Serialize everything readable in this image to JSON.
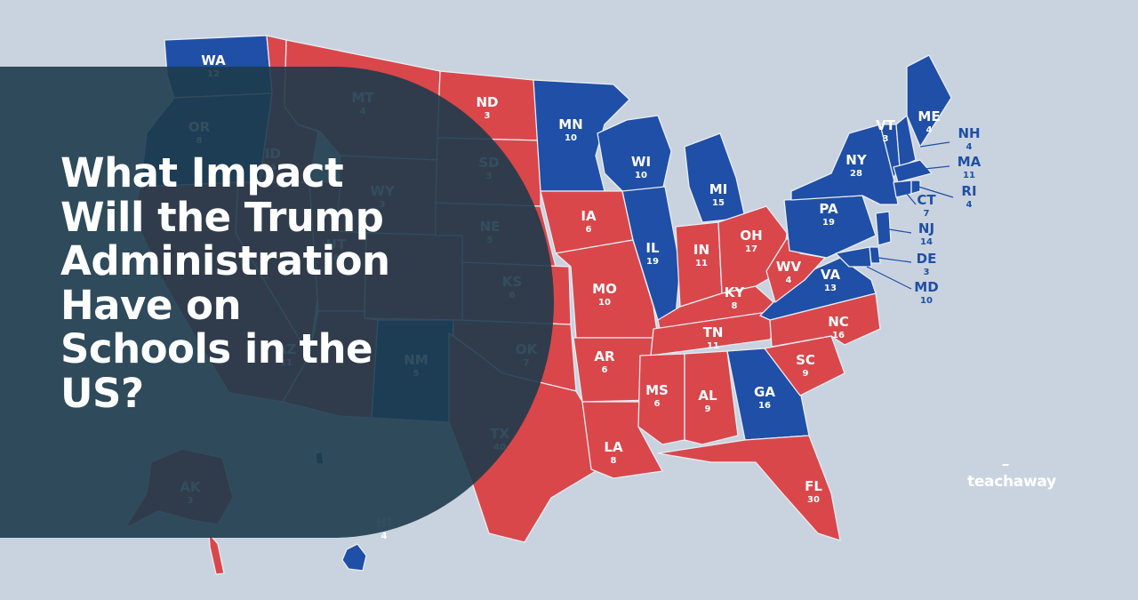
{
  "page_title": "What Impact Will the Trump Administration Have on Schools in the US?",
  "headline_lines": [
    "What Impact",
    "Will the Trump",
    "Administration",
    "Have on",
    "Schools in the",
    "US?"
  ],
  "brand": "teachaway",
  "colors": {
    "background": "#c9d3df",
    "red": "#d9474b",
    "blue": "#1f4fa6",
    "overlay": "#1d3b4d",
    "text": "#ffffff"
  },
  "map": {
    "WA": {
      "abbr": "WA",
      "votes": "12",
      "party": "blue"
    },
    "OR": {
      "abbr": "OR",
      "votes": "8",
      "party": "blue"
    },
    "ID": {
      "abbr": "ID",
      "votes": "4",
      "party": "red"
    },
    "MT": {
      "abbr": "MT",
      "votes": "4",
      "party": "red"
    },
    "WY": {
      "abbr": "WY",
      "votes": "3",
      "party": "red"
    },
    "UT": {
      "abbr": "UT",
      "votes": "6",
      "party": "red"
    },
    "AZ": {
      "abbr": "AZ",
      "votes": "11",
      "party": "red"
    },
    "NM": {
      "abbr": "NM",
      "votes": "5",
      "party": "blue"
    },
    "ND": {
      "abbr": "ND",
      "votes": "3",
      "party": "red"
    },
    "SD": {
      "abbr": "SD",
      "votes": "3",
      "party": "red"
    },
    "NE": {
      "abbr": "NE",
      "votes": "5",
      "party": "red"
    },
    "KS": {
      "abbr": "KS",
      "votes": "6",
      "party": "red"
    },
    "OK": {
      "abbr": "OK",
      "votes": "7",
      "party": "red"
    },
    "TX": {
      "abbr": "TX",
      "votes": "40",
      "party": "red"
    },
    "MN": {
      "abbr": "MN",
      "votes": "10",
      "party": "blue"
    },
    "IA": {
      "abbr": "IA",
      "votes": "6",
      "party": "red"
    },
    "MO": {
      "abbr": "MO",
      "votes": "10",
      "party": "red"
    },
    "AR": {
      "abbr": "AR",
      "votes": "6",
      "party": "red"
    },
    "LA": {
      "abbr": "LA",
      "votes": "8",
      "party": "red"
    },
    "WI": {
      "abbr": "WI",
      "votes": "10",
      "party": "blue"
    },
    "IL": {
      "abbr": "IL",
      "votes": "19",
      "party": "blue"
    },
    "MI": {
      "abbr": "MI",
      "votes": "15",
      "party": "blue"
    },
    "IN": {
      "abbr": "IN",
      "votes": "11",
      "party": "red"
    },
    "OH": {
      "abbr": "OH",
      "votes": "17",
      "party": "red"
    },
    "KY": {
      "abbr": "KY",
      "votes": "8",
      "party": "red"
    },
    "TN": {
      "abbr": "TN",
      "votes": "11",
      "party": "red"
    },
    "MS": {
      "abbr": "MS",
      "votes": "6",
      "party": "red"
    },
    "AL": {
      "abbr": "AL",
      "votes": "9",
      "party": "red"
    },
    "GA": {
      "abbr": "GA",
      "votes": "16",
      "party": "blue"
    },
    "FL": {
      "abbr": "FL",
      "votes": "30",
      "party": "red"
    },
    "SC": {
      "abbr": "SC",
      "votes": "9",
      "party": "red"
    },
    "NC": {
      "abbr": "NC",
      "votes": "16",
      "party": "red"
    },
    "VA": {
      "abbr": "VA",
      "votes": "13",
      "party": "blue"
    },
    "WV": {
      "abbr": "WV",
      "votes": "4",
      "party": "red"
    },
    "PA": {
      "abbr": "PA",
      "votes": "19",
      "party": "blue"
    },
    "NY": {
      "abbr": "NY",
      "votes": "28",
      "party": "blue"
    },
    "VT": {
      "abbr": "VT",
      "votes": "3",
      "party": "blue"
    },
    "ME": {
      "abbr": "ME",
      "votes": "4",
      "party": "blue"
    },
    "NH": {
      "abbr": "NH",
      "votes": "4",
      "party": "blue"
    },
    "MA": {
      "abbr": "MA",
      "votes": "11",
      "party": "blue"
    },
    "RI": {
      "abbr": "RI",
      "votes": "4",
      "party": "blue"
    },
    "CT": {
      "abbr": "CT",
      "votes": "7",
      "party": "blue"
    },
    "NJ": {
      "abbr": "NJ",
      "votes": "14",
      "party": "blue"
    },
    "DE": {
      "abbr": "DE",
      "votes": "3",
      "party": "blue"
    },
    "MD": {
      "abbr": "MD",
      "votes": "10",
      "party": "blue"
    },
    "AK": {
      "abbr": "AK",
      "votes": "3",
      "party": "red"
    },
    "HI": {
      "abbr": "HI",
      "votes": "4",
      "party": "blue"
    }
  }
}
